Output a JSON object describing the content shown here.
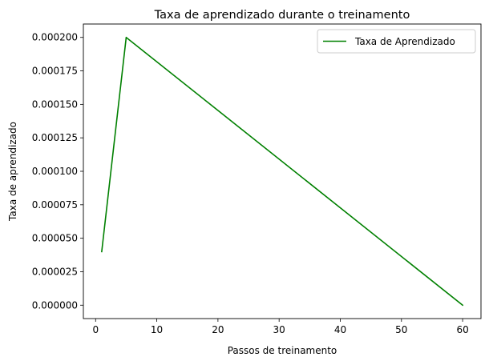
{
  "chart_data": {
    "type": "line",
    "title": "Taxa de aprendizado durante o treinamento",
    "xlabel": "Passos de treinamento",
    "ylabel": "Taxa de aprendizado",
    "xlim": [
      -2.0,
      63.0
    ],
    "ylim": [
      -1e-05,
      0.00021
    ],
    "x_ticks": [
      0,
      10,
      20,
      30,
      40,
      50,
      60
    ],
    "x_tick_labels": [
      "0",
      "10",
      "20",
      "30",
      "40",
      "50",
      "60"
    ],
    "y_ticks": [
      0.0,
      2.5e-05,
      5e-05,
      7.5e-05,
      0.0001,
      0.000125,
      0.00015,
      0.000175,
      0.0002
    ],
    "y_tick_labels": [
      "0.000000",
      "0.000025",
      "0.000050",
      "0.000075",
      "0.000100",
      "0.000125",
      "0.000150",
      "0.000175",
      "0.000200"
    ],
    "grid": false,
    "legend_position": "top-right",
    "series": [
      {
        "name": "Taxa de Aprendizado",
        "color": "#008000",
        "x": [
          1,
          5,
          60
        ],
        "y": [
          4e-05,
          0.0002,
          0.0
        ]
      }
    ]
  }
}
